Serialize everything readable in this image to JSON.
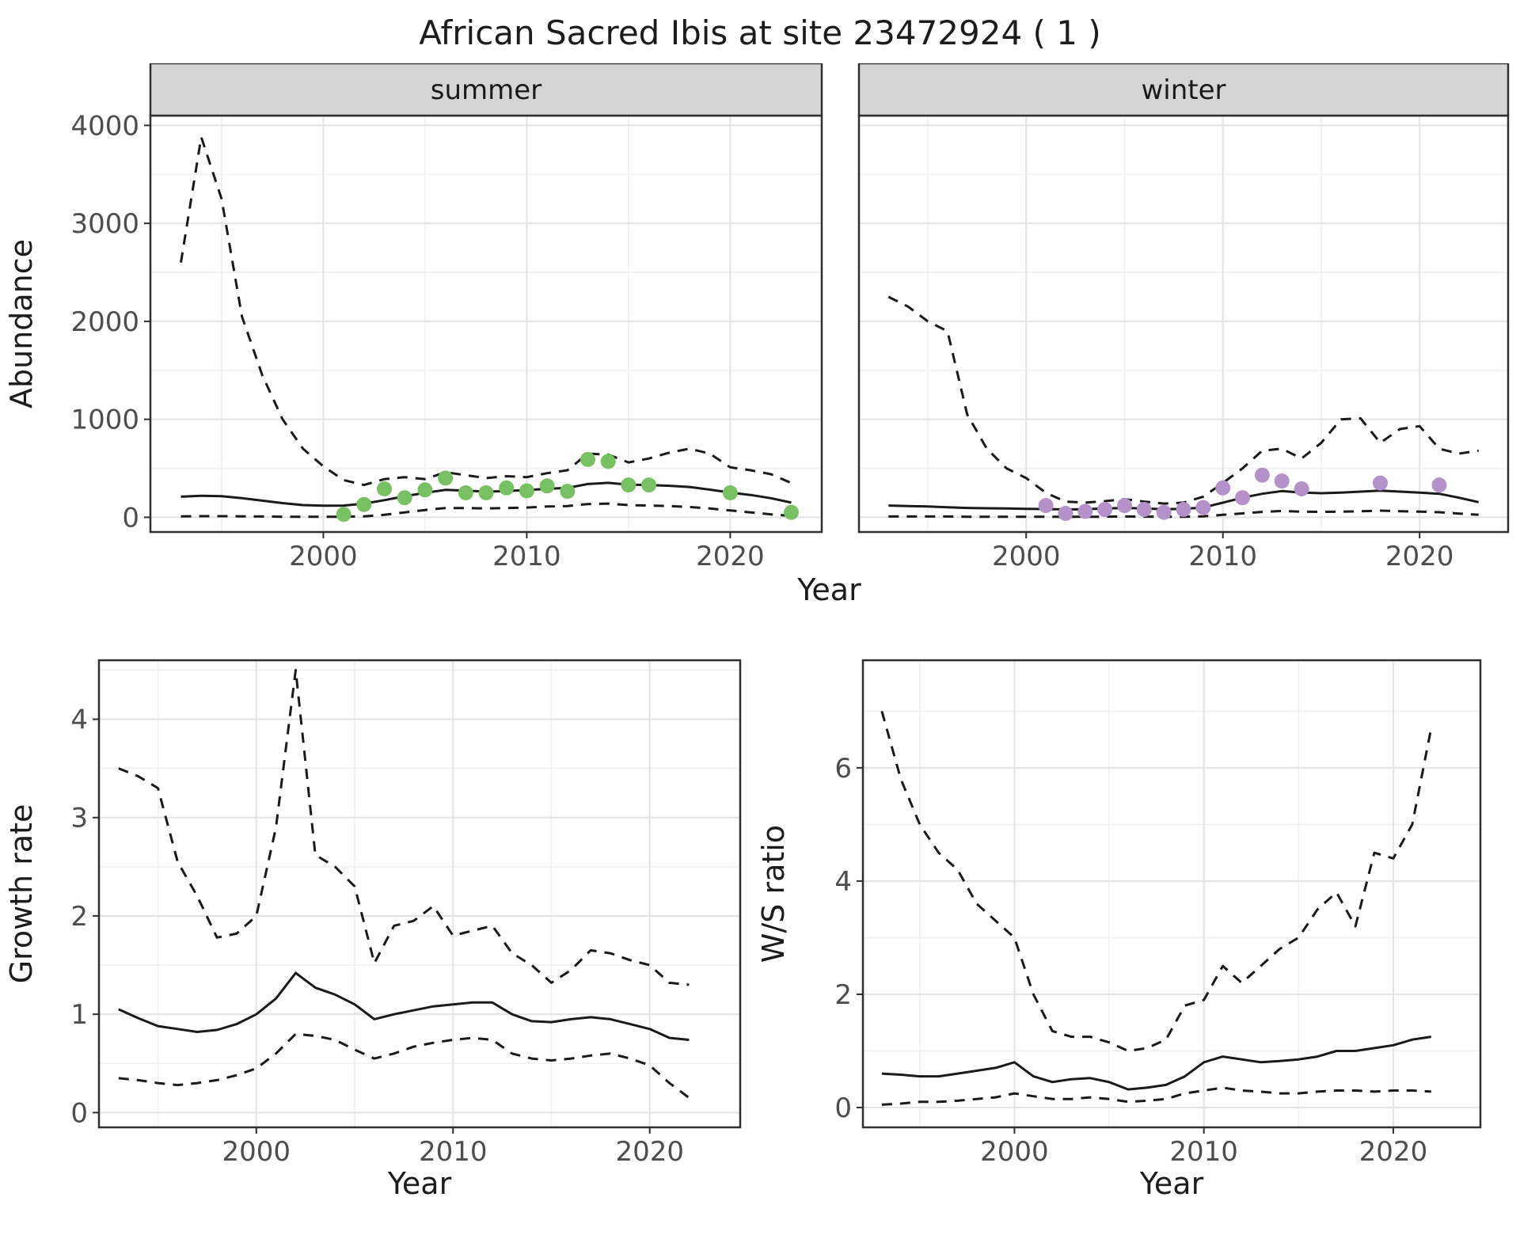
{
  "title": "African Sacred Ibis at site 23472924 ( 1 )",
  "top_row": {
    "xlabel": "Year",
    "ylabel": "Abundance"
  },
  "colors": {
    "line": "#1a1a1a",
    "grid_major": "#e3e3e3",
    "grid_minor": "#f0f0f0",
    "panel_border": "#2f2f2f",
    "strip_bg": "#d5d5d5",
    "strip_text": "#1a1a1a",
    "axis_text": "#4d4d4d",
    "axis_title": "#1c1c1c",
    "summer_points": "#78c162",
    "winter_points": "#b491c8"
  },
  "chart_data": [
    {
      "type": "line",
      "facet_label": "summer",
      "xlabel": "",
      "ylabel": "Abundance",
      "xlim": [
        1991.5,
        2024.5
      ],
      "ylim": [
        -150,
        4100
      ],
      "xticks": [
        2000,
        2010,
        2020
      ],
      "yticks": [
        0,
        1000,
        2000,
        3000,
        4000
      ],
      "x": [
        1993,
        1994,
        1995,
        1996,
        1997,
        1998,
        1999,
        2000,
        2001,
        2002,
        2003,
        2004,
        2005,
        2006,
        2007,
        2008,
        2009,
        2010,
        2011,
        2012,
        2013,
        2014,
        2015,
        2016,
        2017,
        2018,
        2019,
        2020,
        2021,
        2022,
        2023
      ],
      "series": [
        {
          "name": "upper_ci",
          "style": "dashed",
          "y": [
            2600,
            3880,
            3250,
            2050,
            1450,
            1000,
            700,
            520,
            380,
            330,
            390,
            410,
            390,
            460,
            430,
            400,
            420,
            410,
            450,
            480,
            650,
            640,
            560,
            600,
            660,
            700,
            650,
            510,
            480,
            440,
            350
          ]
        },
        {
          "name": "estimate",
          "style": "solid",
          "y": [
            210,
            220,
            215,
            195,
            170,
            145,
            125,
            118,
            120,
            140,
            175,
            215,
            250,
            280,
            272,
            262,
            268,
            278,
            290,
            300,
            340,
            352,
            332,
            330,
            322,
            310,
            282,
            252,
            228,
            195,
            150
          ]
        },
        {
          "name": "lower_ci",
          "style": "dashed",
          "y": [
            10,
            12,
            12,
            10,
            8,
            6,
            5,
            5,
            6,
            10,
            25,
            50,
            75,
            95,
            95,
            90,
            95,
            100,
            110,
            115,
            135,
            140,
            125,
            120,
            115,
            105,
            90,
            70,
            50,
            30,
            15
          ]
        }
      ],
      "points": {
        "name": "observed",
        "color": "#78c162",
        "x": [
          2001,
          2002,
          2003,
          2004,
          2005,
          2006,
          2007,
          2008,
          2009,
          2010,
          2011,
          2012,
          2013,
          2014,
          2015,
          2016,
          2020,
          2023
        ],
        "y": [
          30,
          130,
          290,
          200,
          280,
          400,
          250,
          250,
          300,
          270,
          320,
          265,
          590,
          570,
          330,
          330,
          250,
          50
        ]
      }
    },
    {
      "type": "line",
      "facet_label": "winter",
      "xlabel": "",
      "ylabel": "",
      "xlim": [
        1991.5,
        2024.5
      ],
      "ylim": [
        -150,
        4100
      ],
      "xticks": [
        2000,
        2010,
        2020
      ],
      "yticks": [
        0,
        1000,
        2000,
        3000,
        4000
      ],
      "x": [
        1993,
        1994,
        1995,
        1996,
        1997,
        1998,
        1999,
        2000,
        2001,
        2002,
        2003,
        2004,
        2005,
        2006,
        2007,
        2008,
        2009,
        2010,
        2011,
        2012,
        2013,
        2014,
        2015,
        2016,
        2017,
        2018,
        2019,
        2020,
        2021,
        2022,
        2023
      ],
      "series": [
        {
          "name": "upper_ci",
          "style": "dashed",
          "y": [
            2250,
            2150,
            2000,
            1900,
            1050,
            700,
            500,
            400,
            250,
            160,
            150,
            165,
            185,
            160,
            140,
            150,
            210,
            350,
            500,
            680,
            700,
            600,
            760,
            1000,
            1010,
            760,
            900,
            930,
            700,
            650,
            680
          ]
        },
        {
          "name": "estimate",
          "style": "solid",
          "y": [
            120,
            115,
            110,
            102,
            96,
            92,
            90,
            86,
            84,
            80,
            82,
            90,
            96,
            90,
            82,
            86,
            100,
            150,
            200,
            240,
            268,
            252,
            246,
            252,
            262,
            272,
            262,
            252,
            240,
            200,
            155
          ]
        },
        {
          "name": "lower_ci",
          "style": "dashed",
          "y": [
            8,
            8,
            8,
            8,
            6,
            5,
            5,
            5,
            5,
            5,
            5,
            6,
            8,
            7,
            6,
            6,
            10,
            25,
            40,
            55,
            65,
            58,
            55,
            58,
            62,
            68,
            62,
            58,
            52,
            38,
            25
          ]
        }
      ],
      "points": {
        "name": "observed",
        "color": "#b491c8",
        "x": [
          2001,
          2002,
          2003,
          2004,
          2005,
          2006,
          2007,
          2008,
          2009,
          2010,
          2011,
          2012,
          2013,
          2014,
          2018,
          2021
        ],
        "y": [
          120,
          40,
          60,
          80,
          120,
          80,
          50,
          80,
          100,
          300,
          200,
          430,
          370,
          290,
          350,
          330
        ]
      }
    },
    {
      "type": "line",
      "facet_label": null,
      "xlabel": "Year",
      "ylabel": "Growth rate",
      "xlim": [
        1992,
        2024.6
      ],
      "ylim": [
        -0.15,
        4.6
      ],
      "xticks": [
        2000,
        2010,
        2020
      ],
      "yticks": [
        0,
        1,
        2,
        3,
        4
      ],
      "x": [
        1993,
        1994,
        1995,
        1996,
        1997,
        1998,
        1999,
        2000,
        2001,
        2002,
        2003,
        2004,
        2005,
        2006,
        2007,
        2008,
        2009,
        2010,
        2011,
        2012,
        2013,
        2014,
        2015,
        2016,
        2017,
        2018,
        2019,
        2020,
        2021,
        2022
      ],
      "series": [
        {
          "name": "upper_ci",
          "style": "dashed",
          "y": [
            3.5,
            3.42,
            3.3,
            2.55,
            2.2,
            1.78,
            1.82,
            2.0,
            2.9,
            4.5,
            2.62,
            2.5,
            2.3,
            1.52,
            1.9,
            1.95,
            2.1,
            1.8,
            1.85,
            1.9,
            1.62,
            1.5,
            1.32,
            1.45,
            1.65,
            1.62,
            1.55,
            1.5,
            1.32,
            1.3
          ]
        },
        {
          "name": "estimate",
          "style": "solid",
          "y": [
            1.05,
            0.96,
            0.88,
            0.85,
            0.82,
            0.84,
            0.9,
            1.0,
            1.16,
            1.42,
            1.27,
            1.2,
            1.1,
            0.95,
            1.0,
            1.04,
            1.08,
            1.1,
            1.12,
            1.12,
            1.0,
            0.93,
            0.92,
            0.95,
            0.97,
            0.95,
            0.9,
            0.85,
            0.76,
            0.74
          ]
        },
        {
          "name": "lower_ci",
          "style": "dashed",
          "y": [
            0.35,
            0.33,
            0.3,
            0.28,
            0.3,
            0.33,
            0.38,
            0.45,
            0.6,
            0.8,
            0.78,
            0.74,
            0.64,
            0.55,
            0.6,
            0.67,
            0.71,
            0.74,
            0.76,
            0.74,
            0.6,
            0.55,
            0.53,
            0.55,
            0.58,
            0.6,
            0.55,
            0.48,
            0.3,
            0.15
          ]
        }
      ],
      "points": null
    },
    {
      "type": "line",
      "facet_label": null,
      "xlabel": "Year",
      "ylabel": "W/S ratio",
      "xlim": [
        1992,
        2024.6
      ],
      "ylim": [
        -0.35,
        7.9
      ],
      "xticks": [
        2000,
        2010,
        2020
      ],
      "yticks": [
        0,
        2,
        4,
        6
      ],
      "x": [
        1993,
        1994,
        1995,
        1996,
        1997,
        1998,
        1999,
        2000,
        2001,
        2002,
        2003,
        2004,
        2005,
        2006,
        2007,
        2008,
        2009,
        2010,
        2011,
        2012,
        2013,
        2014,
        2015,
        2016,
        2017,
        2018,
        2019,
        2020,
        2021,
        2022
      ],
      "series": [
        {
          "name": "upper_ci",
          "style": "dashed",
          "y": [
            7.0,
            5.8,
            5.0,
            4.5,
            4.2,
            3.6,
            3.3,
            3.0,
            2.0,
            1.35,
            1.25,
            1.25,
            1.15,
            1.0,
            1.05,
            1.2,
            1.8,
            1.9,
            2.5,
            2.2,
            2.5,
            2.8,
            3.0,
            3.5,
            3.8,
            3.2,
            4.5,
            4.4,
            5.0,
            6.7
          ]
        },
        {
          "name": "estimate",
          "style": "solid",
          "y": [
            0.6,
            0.58,
            0.55,
            0.55,
            0.6,
            0.65,
            0.7,
            0.8,
            0.55,
            0.45,
            0.5,
            0.52,
            0.45,
            0.32,
            0.35,
            0.4,
            0.55,
            0.8,
            0.9,
            0.85,
            0.8,
            0.82,
            0.85,
            0.9,
            1.0,
            1.0,
            1.05,
            1.1,
            1.2,
            1.25
          ]
        },
        {
          "name": "lower_ci",
          "style": "dashed",
          "y": [
            0.05,
            0.07,
            0.1,
            0.1,
            0.12,
            0.15,
            0.18,
            0.25,
            0.2,
            0.15,
            0.15,
            0.18,
            0.15,
            0.1,
            0.12,
            0.15,
            0.25,
            0.3,
            0.35,
            0.3,
            0.28,
            0.25,
            0.25,
            0.28,
            0.3,
            0.3,
            0.28,
            0.3,
            0.3,
            0.28
          ]
        }
      ],
      "points": null
    }
  ]
}
